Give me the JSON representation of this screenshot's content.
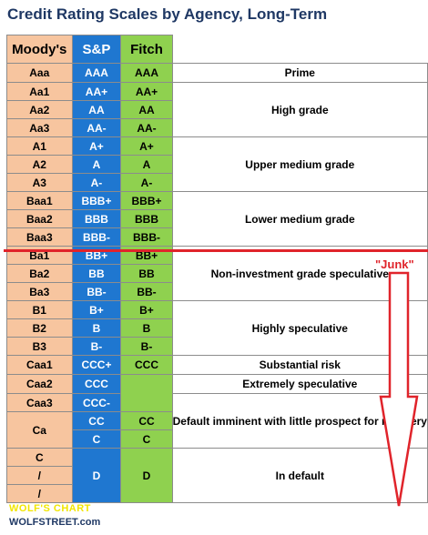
{
  "title": "Credit Rating Scales by Agency, Long-Term",
  "chart_data": {
    "type": "table",
    "columns": [
      "Moody's",
      "S&P",
      "Fitch",
      ""
    ],
    "rows": [
      {
        "moodys": "Aaa",
        "sp": "AAA",
        "fitch": "AAA"
      },
      {
        "moodys": "Aa1",
        "sp": "AA+",
        "fitch": "AA+"
      },
      {
        "moodys": "Aa2",
        "sp": "AA",
        "fitch": "AA"
      },
      {
        "moodys": "Aa3",
        "sp": "AA-",
        "fitch": "AA-"
      },
      {
        "moodys": "A1",
        "sp": "A+",
        "fitch": "A+"
      },
      {
        "moodys": "A2",
        "sp": "A",
        "fitch": "A"
      },
      {
        "moodys": "A3",
        "sp": "A-",
        "fitch": "A-"
      },
      {
        "moodys": "Baa1",
        "sp": "BBB+",
        "fitch": "BBB+"
      },
      {
        "moodys": "Baa2",
        "sp": "BBB",
        "fitch": "BBB"
      },
      {
        "moodys": "Baa3",
        "sp": "BBB-",
        "fitch": "BBB-"
      },
      {
        "moodys": "Ba1",
        "sp": "BB+",
        "fitch": "BB+"
      },
      {
        "moodys": "Ba2",
        "sp": "BB",
        "fitch": "BB"
      },
      {
        "moodys": "Ba3",
        "sp": "BB-",
        "fitch": "BB-"
      },
      {
        "moodys": "B1",
        "sp": "B+",
        "fitch": "B+"
      },
      {
        "moodys": "B2",
        "sp": "B",
        "fitch": "B"
      },
      {
        "moodys": "B3",
        "sp": "B-",
        "fitch": "B-"
      },
      {
        "moodys": "Caa1",
        "sp": "CCC+",
        "fitch": "CCC"
      },
      {
        "moodys": "Caa2",
        "sp": "CCC",
        "fitch": ""
      },
      {
        "moodys": "Caa3",
        "sp": "CCC-",
        "fitch": ""
      },
      {
        "moodys": "Ca",
        "sp": "CC",
        "fitch": "CC"
      },
      {
        "moodys": "",
        "sp": "C",
        "fitch": "C"
      },
      {
        "moodys": "C",
        "sp": "D",
        "fitch": "D"
      },
      {
        "moodys": "/",
        "sp": "",
        "fitch": ""
      },
      {
        "moodys": "/",
        "sp": "",
        "fitch": ""
      }
    ],
    "grades": [
      {
        "label": "Prime",
        "rows": 1
      },
      {
        "label": "High grade",
        "rows": 3
      },
      {
        "label": "Upper medium grade",
        "rows": 3
      },
      {
        "label": "Lower medium grade",
        "rows": 3
      },
      {
        "label": "Non-investment grade speculative",
        "rows": 3
      },
      {
        "label": "Highly speculative",
        "rows": 3
      },
      {
        "label": "Substantial risk",
        "rows": 1
      },
      {
        "label": "Extremely speculative",
        "rows": 1
      },
      {
        "label": "Default imminent with little prospect for recovery",
        "rows": 3
      },
      {
        "label": "In default",
        "rows": 3
      }
    ],
    "annotations": {
      "junk_label": "\"Junk\"",
      "watermark": "WOLF'S CHART",
      "source": "WOLFSTREET.com"
    },
    "colors": {
      "moodys": "#f7c59f",
      "sp": "#1f77d0",
      "fitch": "#8fd14f",
      "junk": "#e0242b",
      "title": "#1f3864"
    }
  }
}
